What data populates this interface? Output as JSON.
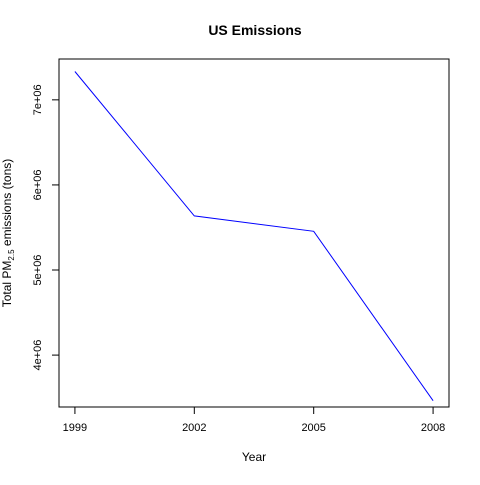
{
  "chart_data": {
    "type": "line",
    "title": "US Emissions",
    "xlabel": "Year",
    "ylabel_parts": {
      "prefix": "Total PM",
      "subscript": "2.5",
      "suffix": " emissions (tons)"
    },
    "x": [
      1999,
      2002,
      2005,
      2008
    ],
    "xticks": [
      "1999",
      "2002",
      "2005",
      "2008"
    ],
    "yticks": [
      4000000,
      5000000,
      6000000,
      7000000
    ],
    "ytick_labels": [
      "4e+06",
      "5e+06",
      "6e+06",
      "7e+06"
    ],
    "xlim": [
      1998.6,
      2008.4
    ],
    "ylim": [
      3390000,
      7480000
    ],
    "grid": false,
    "series": [
      {
        "values": [
          7332967,
          5635780,
          5454703,
          3464206
        ],
        "color": "#0000ff"
      }
    ]
  }
}
